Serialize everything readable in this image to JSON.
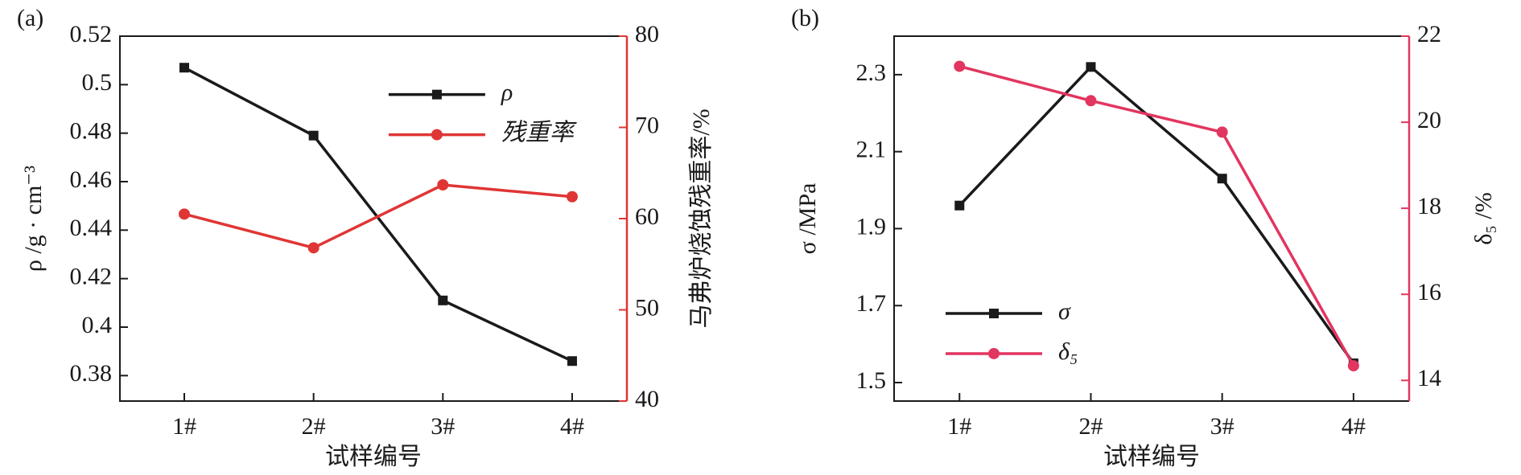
{
  "chart_data": [
    {
      "type": "line",
      "label": "(a)",
      "xlabel": "试样编号",
      "ylabel": "ρ /g · cm⁻³",
      "y2label": "马弗炉烧蚀残重率/%",
      "categories": [
        "1#",
        "2#",
        "3#",
        "4#"
      ],
      "series": [
        {
          "name": "ρ",
          "color": "#1a1a1a",
          "marker": "square",
          "values": [
            0.507,
            0.479,
            0.411,
            0.386
          ]
        },
        {
          "name": "残重率",
          "color": "#e03535",
          "marker": "circle",
          "axis": "y2",
          "values": [
            60.5,
            56.8,
            63.7,
            62.4
          ]
        }
      ],
      "ylim": [
        0.3695,
        0.52
      ],
      "yticks": [
        0.38,
        0.4,
        0.42,
        0.44,
        0.46,
        0.48,
        0.5,
        0.52
      ],
      "y2lim": [
        40,
        80
      ],
      "y2ticks": [
        40,
        50,
        60,
        70,
        80
      ],
      "legend": "upper center"
    },
    {
      "type": "line",
      "label": "(b)",
      "xlabel": "试样编号",
      "ylabel": "σ /MPa",
      "y2label": "δ₅ /%",
      "categories": [
        "1#",
        "2#",
        "3#",
        "4#"
      ],
      "series": [
        {
          "name": "σ",
          "color": "#1a1a1a",
          "marker": "square",
          "values": [
            1.96,
            2.32,
            2.03,
            1.55
          ]
        },
        {
          "name": "δ₅",
          "color": "#e2355f",
          "marker": "circle",
          "axis": "y2",
          "values": [
            21.3,
            20.5,
            19.77,
            14.34
          ]
        }
      ],
      "ylim": [
        1.452,
        2.4
      ],
      "yticks": [
        1.5,
        1.7,
        1.9,
        2.1,
        2.3
      ],
      "y2lim": [
        13.52,
        22
      ],
      "y2ticks": [
        14,
        16,
        18,
        20,
        22
      ],
      "legend": "lower left"
    }
  ]
}
